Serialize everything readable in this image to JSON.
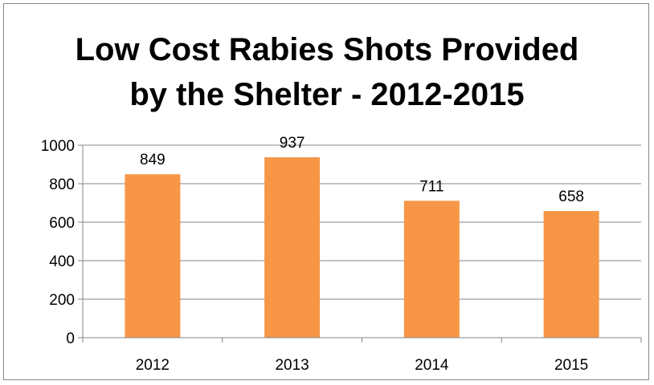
{
  "chart_data": {
    "type": "bar",
    "title_lines": [
      "Low Cost Rabies Shots Provided",
      "by the Shelter - 2012-2015"
    ],
    "categories": [
      "2012",
      "2013",
      "2014",
      "2015"
    ],
    "values": [
      849,
      937,
      711,
      658
    ],
    "data_labels": [
      "849",
      "937",
      "711",
      "658"
    ],
    "xlabel": "",
    "ylabel": "",
    "ylim": [
      0,
      1000
    ],
    "yticks": [
      0,
      200,
      400,
      600,
      800,
      1000
    ],
    "ytick_labels": [
      "0",
      "200",
      "400",
      "600",
      "800",
      "1000"
    ],
    "grid": true,
    "legend": "none",
    "bar_color": "#F79646",
    "grid_color": "#868686"
  }
}
